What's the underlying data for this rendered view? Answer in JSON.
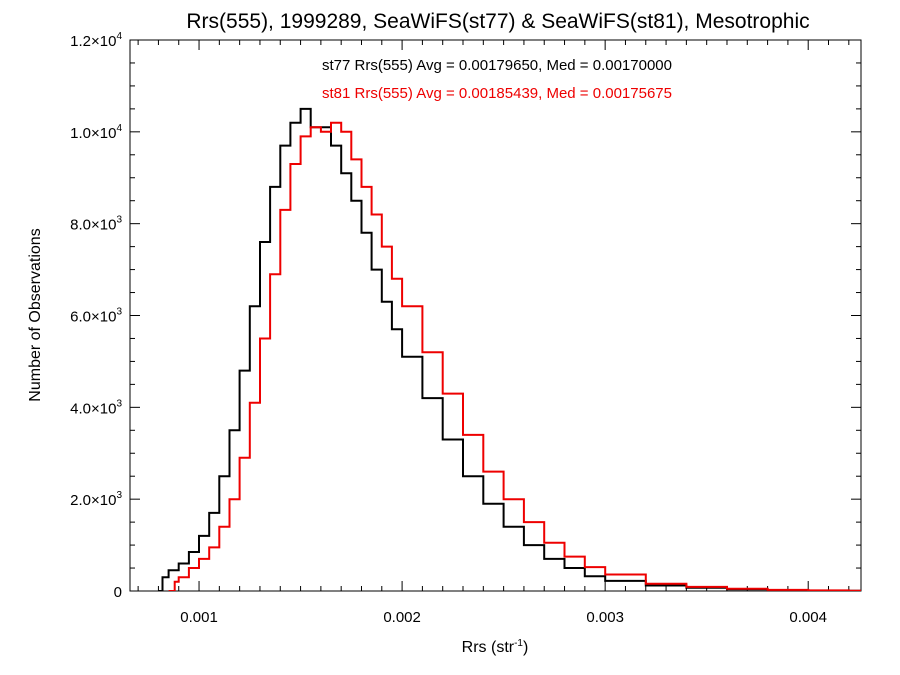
{
  "chart_data": {
    "type": "line",
    "title": "Rrs(555), 1999289, SeaWiFS(st77) & SeaWiFS(st81), Mesotrophic",
    "xlabel": {
      "text": "Rrs (str",
      "sup": "-1",
      "suffix": ")"
    },
    "ylabel": "Number of Observations",
    "xlim": [
      0.00066,
      0.00426
    ],
    "ylim": [
      0,
      12000
    ],
    "xticks": [
      {
        "value": 0.001,
        "label": "0.001"
      },
      {
        "value": 0.002,
        "label": "0.002"
      },
      {
        "value": 0.003,
        "label": "0.003"
      },
      {
        "value": 0.004,
        "label": "0.004"
      }
    ],
    "yticks": [
      {
        "value": 0,
        "mant": "0",
        "exp": ""
      },
      {
        "value": 2000,
        "mant": "2.0×10",
        "exp": "3"
      },
      {
        "value": 4000,
        "mant": "4.0×10",
        "exp": "3"
      },
      {
        "value": 6000,
        "mant": "6.0×10",
        "exp": "3"
      },
      {
        "value": 8000,
        "mant": "8.0×10",
        "exp": "3"
      },
      {
        "value": 10000,
        "mant": "1.0×10",
        "exp": "4"
      },
      {
        "value": 12000,
        "mant": "1.2×10",
        "exp": "4"
      }
    ],
    "grid": false,
    "annotations": [
      {
        "text": "st77 Rrs(555) Avg = 0.00179650, Med = 0.00170000",
        "color": "#000000"
      },
      {
        "text": "st81 Rrs(555) Avg = 0.00185439, Med = 0.00175675",
        "color": "#ee0000"
      }
    ],
    "series": [
      {
        "name": "st77",
        "color": "#000000",
        "x": [
          0.0008,
          0.00082,
          0.00085,
          0.0009,
          0.00095,
          0.001,
          0.00105,
          0.0011,
          0.00115,
          0.0012,
          0.00125,
          0.0013,
          0.00135,
          0.0014,
          0.00145,
          0.0015,
          0.00155,
          0.0016,
          0.00165,
          0.0017,
          0.00175,
          0.0018,
          0.00185,
          0.0019,
          0.00195,
          0.002,
          0.0021,
          0.0022,
          0.0023,
          0.0024,
          0.0025,
          0.0026,
          0.0027,
          0.0028,
          0.0029,
          0.003,
          0.0032,
          0.0034,
          0.0036,
          0.0038,
          0.004,
          0.0042
        ],
        "y": [
          0,
          300,
          450,
          600,
          850,
          1200,
          1700,
          2500,
          3500,
          4800,
          6200,
          7600,
          8800,
          9700,
          10200,
          10500,
          10100,
          10100,
          9700,
          9100,
          8500,
          7800,
          7000,
          6300,
          5700,
          5100,
          4200,
          3300,
          2500,
          1900,
          1400,
          1000,
          700,
          500,
          320,
          220,
          120,
          70,
          40,
          20,
          10,
          5
        ]
      },
      {
        "name": "st81",
        "color": "#ee0000",
        "x": [
          0.00085,
          0.00088,
          0.0009,
          0.00095,
          0.001,
          0.00105,
          0.0011,
          0.00115,
          0.0012,
          0.00125,
          0.0013,
          0.00135,
          0.0014,
          0.00145,
          0.0015,
          0.00155,
          0.0016,
          0.00165,
          0.0017,
          0.00175,
          0.0018,
          0.00185,
          0.0019,
          0.00195,
          0.002,
          0.0021,
          0.0022,
          0.0023,
          0.0024,
          0.0025,
          0.0026,
          0.0027,
          0.0028,
          0.0029,
          0.003,
          0.0032,
          0.0034,
          0.0036,
          0.0038,
          0.004,
          0.0042
        ],
        "y": [
          0,
          200,
          300,
          500,
          700,
          950,
          1400,
          2000,
          2900,
          4100,
          5500,
          6900,
          8300,
          9300,
          9900,
          10100,
          10000,
          10200,
          10000,
          9400,
          8800,
          8200,
          7500,
          6800,
          6200,
          5200,
          4300,
          3400,
          2600,
          2000,
          1500,
          1050,
          750,
          520,
          360,
          160,
          90,
          50,
          25,
          12,
          6
        ]
      }
    ]
  }
}
